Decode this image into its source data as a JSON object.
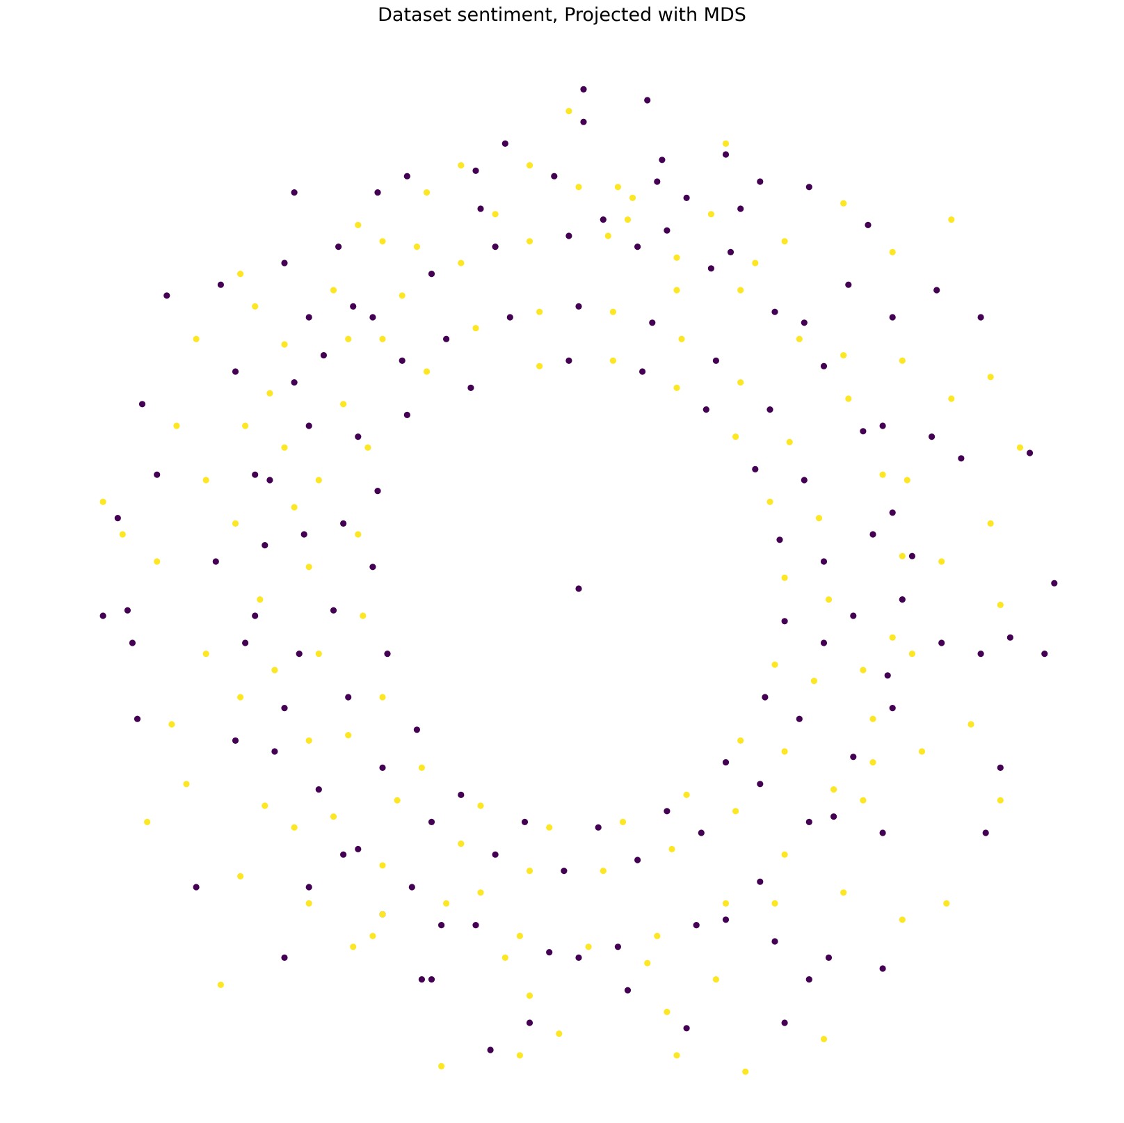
{
  "chart_data": {
    "type": "scatter",
    "title": "Dataset sentiment, Projected with MDS",
    "xlabel": "",
    "ylabel": "",
    "axes": "off",
    "grid": false,
    "legend": "none",
    "xlim": [
      -1.0,
      1.0
    ],
    "ylim": [
      -1.0,
      1.0
    ],
    "colors": {
      "class_0": "#440154",
      "class_1": "#fde725"
    },
    "layout_description": "Ring-shaped point cloud of two sentiment classes: dense inner annulus (radius ~0.33-0.68) and sparse outer halo (radius ~0.68-0.90), empty center with a single point at the origin.",
    "series": [
      {
        "class": 0,
        "points": [
          [
            0.01,
            0.92
          ],
          [
            0.14,
            0.9
          ],
          [
            0.01,
            0.86
          ],
          [
            -0.15,
            0.82
          ],
          [
            0.17,
            0.79
          ],
          [
            -0.41,
            0.73
          ],
          [
            -0.35,
            0.76
          ],
          [
            0.3,
            0.8
          ],
          [
            0.37,
            0.75
          ],
          [
            0.33,
            0.7
          ],
          [
            0.16,
            0.75
          ],
          [
            -0.21,
            0.77
          ],
          [
            -0.05,
            0.76
          ],
          [
            0.47,
            0.74
          ],
          [
            0.73,
            0.55
          ],
          [
            0.59,
            0.67
          ],
          [
            -0.73,
            0.56
          ],
          [
            -0.84,
            0.54
          ],
          [
            -0.6,
            0.6
          ],
          [
            -0.49,
            0.63
          ],
          [
            0.82,
            0.5
          ],
          [
            0.64,
            0.5
          ],
          [
            -0.58,
            0.73
          ],
          [
            -0.89,
            0.34
          ],
          [
            -0.86,
            0.21
          ],
          [
            -0.94,
            0.13
          ],
          [
            -0.92,
            -0.04
          ],
          [
            0.92,
            0.25
          ],
          [
            0.97,
            0.01
          ],
          [
            0.88,
            -0.09
          ],
          [
            0.95,
            -0.12
          ],
          [
            -0.97,
            -0.05
          ],
          [
            -0.91,
            -0.1
          ],
          [
            -0.9,
            -0.24
          ],
          [
            0.86,
            -0.33
          ],
          [
            0.83,
            -0.45
          ],
          [
            0.62,
            -0.7
          ],
          [
            -0.78,
            -0.55
          ],
          [
            -0.6,
            -0.68
          ],
          [
            -0.3,
            -0.72
          ],
          [
            -0.18,
            -0.85
          ],
          [
            -0.1,
            -0.8
          ],
          [
            0.22,
            -0.81
          ],
          [
            0.47,
            -0.72
          ],
          [
            0.42,
            -0.8
          ],
          [
            -0.4,
            -0.6
          ],
          [
            0.51,
            -0.68
          ],
          [
            0.82,
            -0.12
          ],
          [
            0.78,
            0.24
          ],
          [
            -0.52,
            0.43
          ],
          [
            -0.55,
            0.3
          ],
          [
            -0.63,
            0.2
          ],
          [
            -0.64,
            0.08
          ],
          [
            -0.66,
            -0.05
          ],
          [
            -0.6,
            -0.22
          ],
          [
            -0.53,
            -0.37
          ],
          [
            -0.45,
            -0.48
          ],
          [
            -0.34,
            -0.55
          ],
          [
            -0.21,
            -0.62
          ],
          [
            -0.06,
            -0.67
          ],
          [
            0.08,
            -0.66
          ],
          [
            0.24,
            -0.62
          ],
          [
            0.37,
            -0.54
          ],
          [
            0.47,
            -0.43
          ],
          [
            0.56,
            -0.31
          ],
          [
            0.63,
            -0.16
          ],
          [
            0.66,
            -0.02
          ],
          [
            0.64,
            0.14
          ],
          [
            0.58,
            0.29
          ],
          [
            0.5,
            0.41
          ],
          [
            0.4,
            0.51
          ],
          [
            0.27,
            0.59
          ],
          [
            0.12,
            0.63
          ],
          [
            -0.02,
            0.65
          ],
          [
            -0.17,
            0.63
          ],
          [
            -0.3,
            0.58
          ],
          [
            -0.42,
            0.5
          ],
          [
            0.05,
            0.68
          ],
          [
            0.18,
            0.66
          ],
          [
            0.31,
            0.62
          ],
          [
            -0.46,
            0.52
          ],
          [
            -0.58,
            0.38
          ],
          [
            -0.66,
            0.21
          ],
          [
            -0.68,
            -0.1
          ],
          [
            -0.62,
            -0.3
          ],
          [
            -0.48,
            -0.49
          ],
          [
            -0.28,
            -0.62
          ],
          [
            0.0,
            -0.68
          ],
          [
            0.3,
            -0.61
          ],
          [
            0.52,
            -0.42
          ],
          [
            0.64,
            -0.22
          ],
          [
            0.68,
            0.06
          ],
          [
            0.62,
            0.3
          ],
          [
            0.46,
            0.49
          ],
          [
            -0.36,
            0.42
          ],
          [
            -0.45,
            0.28
          ],
          [
            -0.48,
            0.12
          ],
          [
            -0.5,
            -0.04
          ],
          [
            -0.47,
            -0.2
          ],
          [
            -0.4,
            -0.33
          ],
          [
            -0.3,
            -0.43
          ],
          [
            -0.17,
            -0.49
          ],
          [
            -0.03,
            -0.52
          ],
          [
            0.12,
            -0.5
          ],
          [
            0.25,
            -0.45
          ],
          [
            0.37,
            -0.36
          ],
          [
            0.45,
            -0.24
          ],
          [
            0.5,
            -0.1
          ],
          [
            0.5,
            0.05
          ],
          [
            0.46,
            0.2
          ],
          [
            0.39,
            0.33
          ],
          [
            0.28,
            0.42
          ],
          [
            0.15,
            0.49
          ],
          [
            0.0,
            0.52
          ],
          [
            -0.14,
            0.5
          ],
          [
            -0.27,
            0.46
          ],
          [
            -0.22,
            0.37
          ],
          [
            -0.35,
            0.32
          ],
          [
            -0.41,
            0.18
          ],
          [
            -0.42,
            0.04
          ],
          [
            -0.39,
            -0.12
          ],
          [
            -0.33,
            -0.26
          ],
          [
            -0.24,
            -0.38
          ],
          [
            -0.11,
            -0.43
          ],
          [
            0.04,
            -0.44
          ],
          [
            0.18,
            -0.41
          ],
          [
            0.3,
            -0.32
          ],
          [
            0.38,
            -0.2
          ],
          [
            0.42,
            -0.06
          ],
          [
            0.41,
            0.09
          ],
          [
            0.36,
            0.22
          ],
          [
            0.26,
            0.33
          ],
          [
            0.13,
            0.4
          ],
          [
            -0.02,
            0.42
          ],
          [
            -0.55,
            0.5
          ],
          [
            -0.7,
            0.4
          ],
          [
            -0.74,
            0.05
          ],
          [
            -0.7,
            -0.28
          ],
          [
            -0.55,
            -0.55
          ],
          [
            -0.32,
            -0.72
          ],
          [
            0.1,
            -0.74
          ],
          [
            0.4,
            -0.65
          ],
          [
            0.62,
            -0.45
          ],
          [
            0.74,
            -0.1
          ],
          [
            0.72,
            0.28
          ],
          [
            0.55,
            0.56
          ],
          [
            0.22,
            0.72
          ],
          [
            -0.2,
            0.7
          ],
          [
            0.6,
            0.1
          ],
          [
            0.56,
            -0.05
          ],
          [
            -0.56,
            0.1
          ],
          [
            -0.57,
            -0.12
          ],
          [
            0.0,
            0.0
          ]
        ]
      },
      {
        "class": 1,
        "points": [
          [
            -0.02,
            0.88
          ],
          [
            -0.1,
            0.78
          ],
          [
            0.08,
            0.74
          ],
          [
            0.11,
            0.72
          ],
          [
            -0.24,
            0.78
          ],
          [
            -0.31,
            0.73
          ],
          [
            -0.45,
            0.67
          ],
          [
            -0.69,
            0.58
          ],
          [
            -0.66,
            0.52
          ],
          [
            0.27,
            0.69
          ],
          [
            0.54,
            0.71
          ],
          [
            0.76,
            0.68
          ],
          [
            0.64,
            0.62
          ],
          [
            0.84,
            0.39
          ],
          [
            0.76,
            0.35
          ],
          [
            0.9,
            0.26
          ],
          [
            0.86,
            -0.03
          ],
          [
            0.86,
            -0.39
          ],
          [
            0.75,
            -0.58
          ],
          [
            0.66,
            -0.61
          ],
          [
            -0.69,
            -0.53
          ],
          [
            -0.83,
            -0.25
          ],
          [
            -0.97,
            0.16
          ],
          [
            -0.93,
            0.1
          ],
          [
            -0.88,
            -0.43
          ],
          [
            -0.73,
            -0.73
          ],
          [
            -0.42,
            -0.64
          ],
          [
            -0.55,
            -0.58
          ],
          [
            0.5,
            -0.83
          ],
          [
            0.18,
            -0.78
          ],
          [
            -0.04,
            -0.82
          ],
          [
            -0.28,
            -0.88
          ],
          [
            0.34,
            -0.89
          ],
          [
            -0.86,
            0.05
          ],
          [
            0.6,
            -0.32
          ],
          [
            -0.63,
            0.36
          ],
          [
            -0.6,
            0.26
          ],
          [
            -0.65,
            -0.02
          ],
          [
            -0.62,
            -0.15
          ],
          [
            -0.55,
            -0.28
          ],
          [
            -0.5,
            -0.42
          ],
          [
            -0.4,
            -0.51
          ],
          [
            -0.27,
            -0.58
          ],
          [
            -0.12,
            -0.64
          ],
          [
            0.02,
            -0.66
          ],
          [
            0.16,
            -0.64
          ],
          [
            0.3,
            -0.58
          ],
          [
            0.42,
            -0.49
          ],
          [
            0.52,
            -0.37
          ],
          [
            0.6,
            -0.24
          ],
          [
            0.64,
            -0.09
          ],
          [
            0.66,
            0.06
          ],
          [
            0.62,
            0.21
          ],
          [
            0.55,
            0.35
          ],
          [
            0.45,
            0.46
          ],
          [
            0.33,
            0.55
          ],
          [
            0.2,
            0.61
          ],
          [
            0.06,
            0.65
          ],
          [
            -0.1,
            0.64
          ],
          [
            -0.24,
            0.6
          ],
          [
            -0.36,
            0.54
          ],
          [
            -0.47,
            0.46
          ],
          [
            -0.17,
            0.69
          ],
          [
            -0.33,
            0.63
          ],
          [
            -0.5,
            0.55
          ],
          [
            -0.6,
            0.45
          ],
          [
            -0.68,
            0.3
          ],
          [
            -0.7,
            0.12
          ],
          [
            -0.69,
            -0.2
          ],
          [
            -0.58,
            -0.44
          ],
          [
            -0.4,
            -0.6
          ],
          [
            -0.15,
            -0.68
          ],
          [
            0.14,
            -0.69
          ],
          [
            0.4,
            -0.58
          ],
          [
            0.58,
            -0.39
          ],
          [
            0.68,
            -0.12
          ],
          [
            0.67,
            0.2
          ],
          [
            0.54,
            0.43
          ],
          [
            0.36,
            0.6
          ],
          [
            0.1,
            0.68
          ],
          [
            -0.4,
            0.46
          ],
          [
            -0.48,
            0.34
          ],
          [
            -0.53,
            0.2
          ],
          [
            -0.55,
            0.04
          ],
          [
            -0.53,
            -0.12
          ],
          [
            -0.47,
            -0.27
          ],
          [
            -0.37,
            -0.39
          ],
          [
            -0.24,
            -0.47
          ],
          [
            -0.1,
            -0.52
          ],
          [
            0.05,
            -0.52
          ],
          [
            0.19,
            -0.48
          ],
          [
            0.32,
            -0.41
          ],
          [
            0.42,
            -0.3
          ],
          [
            0.48,
            -0.17
          ],
          [
            0.51,
            -0.02
          ],
          [
            0.49,
            0.13
          ],
          [
            0.43,
            0.27
          ],
          [
            0.33,
            0.38
          ],
          [
            0.21,
            0.46
          ],
          [
            0.07,
            0.51
          ],
          [
            -0.08,
            0.51
          ],
          [
            -0.21,
            0.48
          ],
          [
            -0.31,
            0.4
          ],
          [
            -0.43,
            0.26
          ],
          [
            -0.45,
            0.1
          ],
          [
            -0.44,
            -0.05
          ],
          [
            -0.4,
            -0.2
          ],
          [
            -0.32,
            -0.33
          ],
          [
            -0.2,
            -0.4
          ],
          [
            -0.06,
            -0.44
          ],
          [
            0.09,
            -0.43
          ],
          [
            0.22,
            -0.38
          ],
          [
            0.33,
            -0.28
          ],
          [
            0.4,
            -0.14
          ],
          [
            0.42,
            0.02
          ],
          [
            0.39,
            0.16
          ],
          [
            0.32,
            0.28
          ],
          [
            0.2,
            0.37
          ],
          [
            0.07,
            0.42
          ],
          [
            -0.08,
            0.41
          ],
          [
            -0.78,
            0.46
          ],
          [
            -0.76,
            0.2
          ],
          [
            -0.76,
            -0.12
          ],
          [
            -0.64,
            -0.4
          ],
          [
            -0.46,
            -0.66
          ],
          [
            -0.1,
            -0.75
          ],
          [
            0.28,
            -0.72
          ],
          [
            0.54,
            -0.56
          ],
          [
            0.7,
            -0.3
          ],
          [
            0.74,
            0.05
          ],
          [
            0.66,
            0.42
          ],
          [
            0.42,
            0.64
          ],
          [
            0.0,
            0.74
          ],
          [
            -0.4,
            0.64
          ],
          [
            -0.58,
            0.15
          ],
          [
            0.58,
            -0.15
          ],
          [
            0.2,
            0.55
          ],
          [
            -0.2,
            -0.56
          ],
          [
            0.84,
            0.12
          ],
          [
            0.8,
            -0.25
          ],
          [
            -0.82,
            0.3
          ],
          [
            -0.8,
            -0.36
          ],
          [
            0.3,
            0.82
          ],
          [
            -0.12,
            -0.86
          ],
          [
            0.2,
            -0.86
          ]
        ]
      }
    ]
  }
}
